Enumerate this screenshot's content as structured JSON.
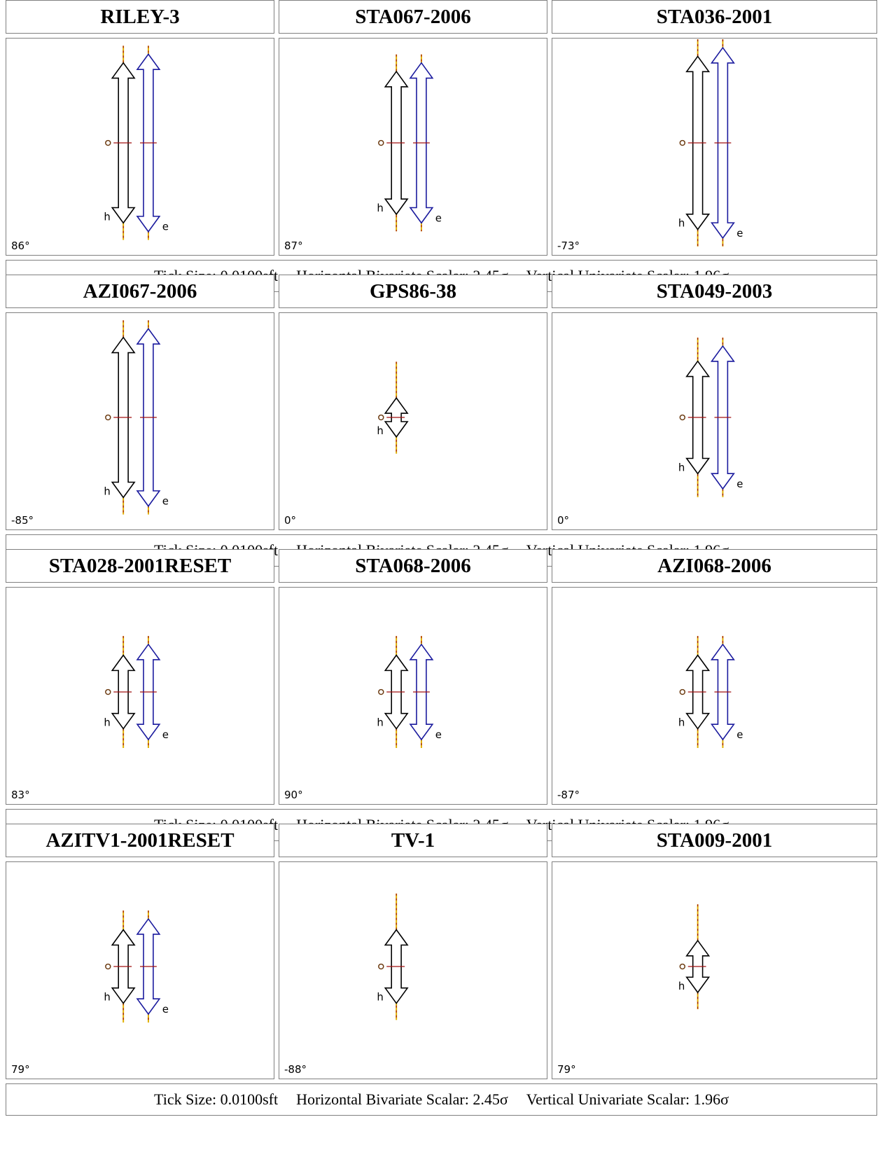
{
  "footer": {
    "tick_size": "Tick Size: 0.0100sft",
    "horizontal_scalar": "Horizontal Bivariate Scalar: 2.45σ",
    "vertical_scalar": "Vertical Univariate Scalar: 1.96σ"
  },
  "labels": {
    "h": "h",
    "e": "e"
  },
  "colors": {
    "h_arrow": "#000000",
    "e_arrow": "#1a1a9e",
    "tick_line_a": "#e0b000",
    "tick_line_b": "#a01010",
    "cross": "#a01010",
    "fill": "#ffffff"
  },
  "stations": [
    {
      "name": "RILEY-3",
      "angle": "86°",
      "h_len": 0.74,
      "e_len": 0.82,
      "has_e": true
    },
    {
      "name": "STA067-2006",
      "angle": "87°",
      "h_len": 0.66,
      "e_len": 0.74,
      "has_e": true
    },
    {
      "name": "STA036-2001",
      "angle": "-73°",
      "h_len": 0.8,
      "e_len": 0.88,
      "has_e": true
    },
    {
      "name": "AZI067-2006",
      "angle": "-85°",
      "h_len": 0.74,
      "e_len": 0.82,
      "has_e": true
    },
    {
      "name": "GPS86-38",
      "angle": "0°",
      "h_len": 0.18,
      "e_len": 0,
      "has_e": false
    },
    {
      "name": "STA049-2003",
      "angle": "0°",
      "h_len": 0.52,
      "e_len": 0.66,
      "has_e": true
    },
    {
      "name": "STA028-2001RESET",
      "angle": "83°",
      "h_len": 0.34,
      "e_len": 0.44,
      "has_e": true
    },
    {
      "name": "STA068-2006",
      "angle": "90°",
      "h_len": 0.34,
      "e_len": 0.44,
      "has_e": true
    },
    {
      "name": "AZI068-2006",
      "angle": "-87°",
      "h_len": 0.34,
      "e_len": 0.44,
      "has_e": true
    },
    {
      "name": "AZITV1-2001RESET",
      "angle": "79°",
      "h_len": 0.34,
      "e_len": 0.44,
      "has_e": true
    },
    {
      "name": "TV-1",
      "angle": "-88°",
      "h_len": 0.34,
      "e_len": 0,
      "has_e": false
    },
    {
      "name": "STA009-2001",
      "angle": "79°",
      "h_len": 0.24,
      "e_len": 0,
      "has_e": false
    }
  ]
}
